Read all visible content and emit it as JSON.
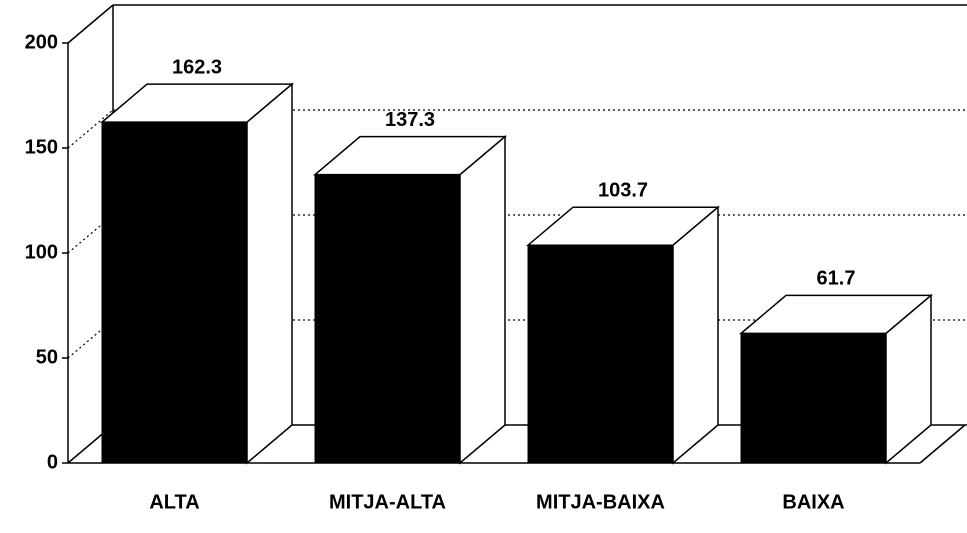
{
  "chart_data": {
    "type": "bar3d",
    "categories": [
      "ALTA",
      "MITJA-ALTA",
      "MITJA-BAIXA",
      "BAIXA"
    ],
    "values": [
      162.3,
      137.3,
      103.7,
      61.7
    ],
    "color": "#000000",
    "ylim": [
      0,
      200
    ],
    "yticks": [
      0,
      50,
      100,
      150,
      200
    ],
    "grid": true
  }
}
